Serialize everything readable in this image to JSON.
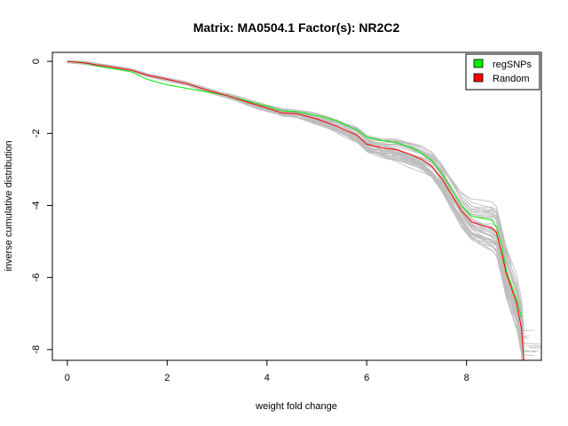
{
  "chart_data": {
    "type": "line",
    "title": "Matrix: MA0504.1 Factor(s): NR2C2",
    "xlabel": "weight fold change",
    "ylabel": "inverse cumulative distribution",
    "xlim": [
      -0.3,
      9.5
    ],
    "ylim": [
      -8.3,
      0.25
    ],
    "x_ticks": [
      0,
      2,
      4,
      6,
      8
    ],
    "y_ticks": [
      0,
      -2,
      -4,
      -6,
      -8
    ],
    "grid": false,
    "legend_position": "top-right",
    "colors": {
      "regSNPs": "#00ee00",
      "Random": "#ff0000",
      "background_samples": "#bebebe"
    },
    "series": [
      {
        "name": "regSNPs",
        "x": [
          0,
          0.2,
          0.4,
          0.6,
          0.8,
          1.0,
          1.3,
          1.6,
          2.0,
          2.4,
          2.8,
          3.2,
          3.6,
          4.0,
          4.3,
          4.6,
          5.0,
          5.4,
          5.8,
          6.0,
          6.3,
          6.6,
          6.9,
          7.1,
          7.3,
          7.5,
          7.7,
          7.9,
          8.1,
          8.3,
          8.5,
          8.6,
          8.7,
          8.8,
          8.9,
          9.0,
          9.1
        ],
        "y": [
          0,
          -0.02,
          -0.06,
          -0.12,
          -0.18,
          -0.22,
          -0.3,
          -0.5,
          -0.65,
          -0.75,
          -0.85,
          -0.95,
          -1.1,
          -1.25,
          -1.37,
          -1.4,
          -1.5,
          -1.65,
          -1.9,
          -2.1,
          -2.2,
          -2.25,
          -2.4,
          -2.55,
          -2.75,
          -3.1,
          -3.55,
          -4.0,
          -4.3,
          -4.35,
          -4.4,
          -4.6,
          -5.1,
          -5.8,
          -6.2,
          -6.6,
          -7.1
        ]
      },
      {
        "name": "Random",
        "x": [
          0,
          0.2,
          0.4,
          0.6,
          0.8,
          1.0,
          1.3,
          1.6,
          2.0,
          2.4,
          2.8,
          3.2,
          3.6,
          4.0,
          4.3,
          4.6,
          5.0,
          5.4,
          5.8,
          6.0,
          6.3,
          6.6,
          6.9,
          7.1,
          7.3,
          7.5,
          7.7,
          7.9,
          8.1,
          8.3,
          8.5,
          8.6,
          8.7,
          8.8,
          8.9,
          9.0,
          9.1,
          9.15
        ],
        "y": [
          0,
          -0.02,
          -0.05,
          -0.1,
          -0.14,
          -0.18,
          -0.25,
          -0.38,
          -0.5,
          -0.62,
          -0.8,
          -0.95,
          -1.13,
          -1.3,
          -1.43,
          -1.45,
          -1.6,
          -1.8,
          -2.05,
          -2.3,
          -2.4,
          -2.45,
          -2.6,
          -2.72,
          -2.9,
          -3.25,
          -3.7,
          -4.15,
          -4.45,
          -4.55,
          -4.62,
          -4.75,
          -5.3,
          -5.9,
          -6.3,
          -6.7,
          -7.4,
          -8.3
        ]
      }
    ]
  }
}
